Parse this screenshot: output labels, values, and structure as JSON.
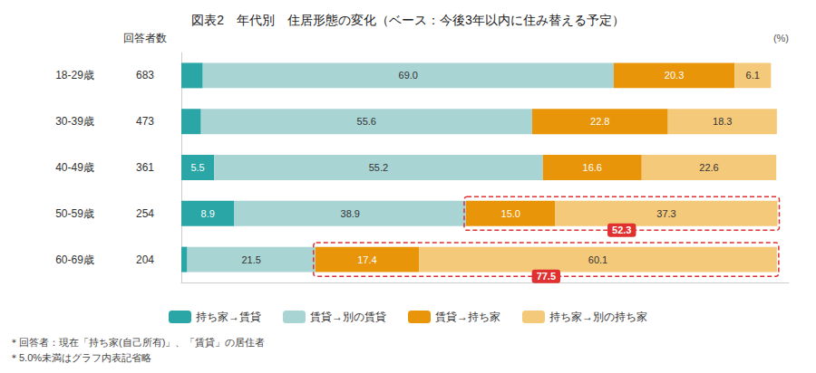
{
  "chart_data": {
    "type": "bar",
    "orientation": "horizontal",
    "stacked": true,
    "title": "図表2　年代別　住居形態の変化（ベース：今後3年以内に住み替える予定）",
    "categories": [
      "18-29歳",
      "30-39歳",
      "40-49歳",
      "50-59歳",
      "60-69歳"
    ],
    "count_header": "回答者数",
    "counts": [
      683,
      473,
      361,
      254,
      204
    ],
    "unit_label": "(%)",
    "footnotes": [
      "＊回答者：現在「持ち家(自己所有)」、「賃貸」の居住者",
      "＊5.0%未満はグラフ内表記省略"
    ],
    "series": [
      {
        "name": "持ち家→賃貸",
        "color": "#2ba6a6",
        "values": [
          3.6,
          3.3,
          5.5,
          8.9,
          1.0
        ],
        "value_labels": [
          null,
          null,
          "5.5",
          "8.9",
          null
        ]
      },
      {
        "name": "賃貸→別の賃貸",
        "color": "#a8d4d4",
        "values": [
          69.0,
          55.6,
          55.2,
          38.9,
          21.5
        ],
        "value_labels": [
          "69.0",
          "55.6",
          "55.2",
          "38.9",
          "21.5"
        ]
      },
      {
        "name": "賃貸→持ち家",
        "color": "#e8950a",
        "values": [
          20.3,
          22.8,
          16.6,
          15.0,
          17.4
        ],
        "value_labels": [
          "20.3",
          "22.8",
          "16.6",
          "15.0",
          "17.4"
        ]
      },
      {
        "name": "持ち家→別の持ち家",
        "color": "#f5c97a",
        "values": [
          6.1,
          18.3,
          22.6,
          37.3,
          60.1
        ],
        "value_labels": [
          "6.1",
          "18.3",
          "22.6",
          "37.3",
          "60.1"
        ]
      }
    ],
    "data_labels": true,
    "xlim": [
      0,
      102
    ],
    "tick_labels": "y",
    "grid": false,
    "legend": "bottom",
    "annotations": [
      {
        "text": "52.3",
        "category": "50-59歳",
        "series": [
          "賃貸→持ち家",
          "持ち家→別の持ち家"
        ],
        "color": "#e03030"
      },
      {
        "text": "77.5",
        "category": "60-69歳",
        "series": [
          "賃貸→持ち家",
          "持ち家→別の持ち家"
        ],
        "color": "#e03030"
      }
    ]
  }
}
